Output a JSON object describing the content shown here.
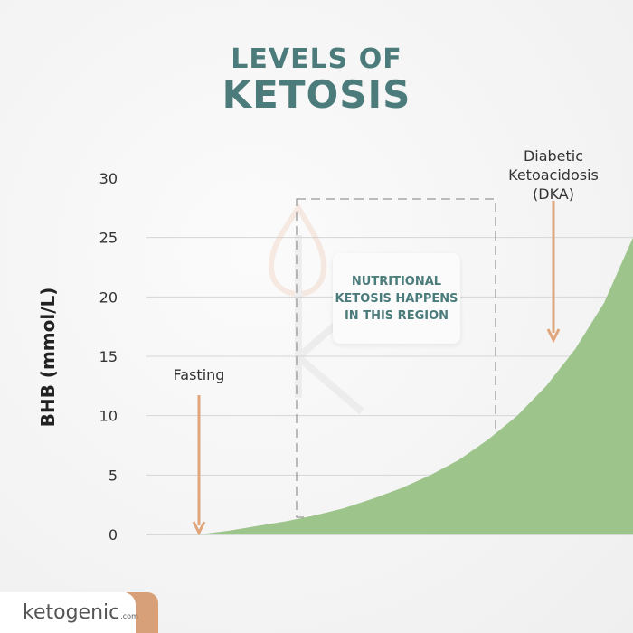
{
  "title": {
    "line1": "LEVELS OF",
    "line2": "KETOSIS"
  },
  "region_box": {
    "text": "NUTRITIONAL KETOSIS HAPPENS IN THIS REGION"
  },
  "logo": {
    "name": "ketogenic",
    "suffix": ".com"
  },
  "colors": {
    "title": "#4b7c7b",
    "fill": "#9dc48b",
    "arrow": "#e0a57a",
    "grid": "#d6d6d6"
  },
  "chart_data": {
    "type": "area",
    "title": "LEVELS OF KETOSIS",
    "xlabel": "",
    "ylabel": "BHB (mmol/L)",
    "ylim": [
      0,
      30
    ],
    "yticks": [
      "0",
      "5",
      "10",
      "15",
      "20",
      "25",
      "30"
    ],
    "grid": true,
    "series": [
      {
        "values": [
          0,
          0.3,
          0.7,
          1.1,
          1.6,
          2.2,
          3.0,
          3.9,
          5.0,
          6.3,
          8.0,
          10.0,
          12.5,
          15.6,
          19.5,
          25.0
        ]
      }
    ],
    "annotations": [
      {
        "label": "Fasting",
        "y": 0
      },
      {
        "label": "Diabetic Ketoacidosis (DKA)",
        "y": 17
      }
    ]
  }
}
